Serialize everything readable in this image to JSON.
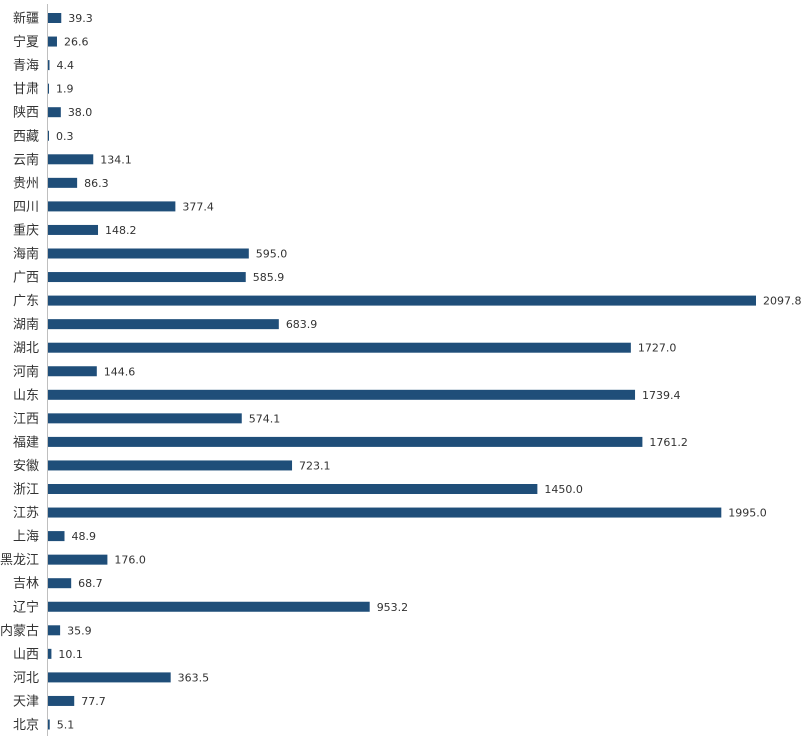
{
  "chart_data": {
    "type": "bar",
    "orientation": "horizontal",
    "title": "",
    "xlabel": "",
    "ylabel": "",
    "categories": [
      "新疆",
      "宁夏",
      "青海",
      "甘肃",
      "陕西",
      "西藏",
      "云南",
      "贵州",
      "四川",
      "重庆",
      "海南",
      "广西",
      "广东",
      "湖南",
      "湖北",
      "河南",
      "山东",
      "江西",
      "福建",
      "安徽",
      "浙江",
      "江苏",
      "上海",
      "黑龙江",
      "吉林",
      "辽宁",
      "内蒙古",
      "山西",
      "河北",
      "天津",
      "北京"
    ],
    "values": [
      39.3,
      26.6,
      4.4,
      1.9,
      38.0,
      0.3,
      134.1,
      86.3,
      377.4,
      148.2,
      595.0,
      585.9,
      2097.8,
      683.9,
      1727.0,
      144.6,
      1739.4,
      574.1,
      1761.2,
      723.1,
      1450.0,
      1995.0,
      48.9,
      176.0,
      68.7,
      953.2,
      35.9,
      10.1,
      363.5,
      77.7,
      5.1
    ],
    "value_labels": [
      "39.3",
      "26.6",
      "4.4",
      "1.9",
      "38.0",
      "0.3",
      "134.1",
      "86.3",
      "377.4",
      "148.2",
      "595.0",
      "585.9",
      "2097.8",
      "683.9",
      "1727.0",
      "144.6",
      "1739.4",
      "574.1",
      "1761.2",
      "723.1",
      "1450.0",
      "1995.0",
      "48.9",
      "176.0",
      "68.7",
      "953.2",
      "35.9",
      "10.1",
      "363.5",
      "77.7",
      "5.1"
    ],
    "xlim": [
      0,
      2097.8
    ],
    "grid": false,
    "legend": "none",
    "bar_color": "#1f4e79",
    "axis_color": "#bfbfbf"
  }
}
